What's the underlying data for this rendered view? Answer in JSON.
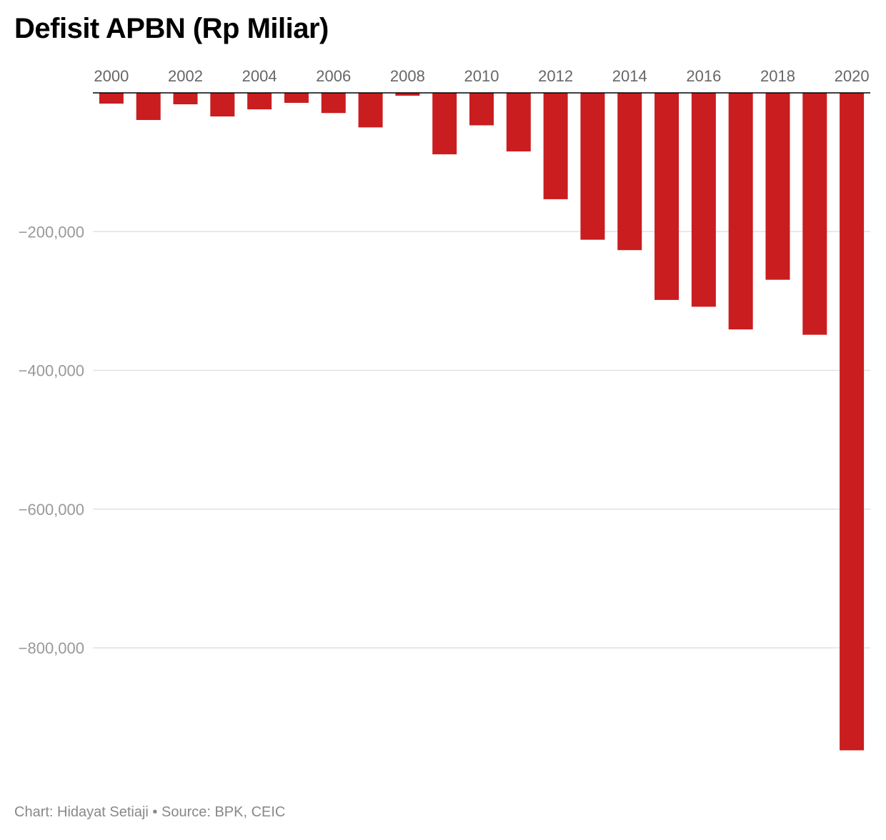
{
  "chart_data": {
    "type": "bar",
    "title": "Defisit APBN (Rp Miliar)",
    "xlabel": "",
    "ylabel": "",
    "categories": [
      "2000",
      "2001",
      "2002",
      "2003",
      "2004",
      "2005",
      "2006",
      "2007",
      "2008",
      "2009",
      "2010",
      "2011",
      "2012",
      "2013",
      "2014",
      "2015",
      "2016",
      "2017",
      "2018",
      "2019",
      "2020"
    ],
    "values": [
      -15500,
      -39100,
      -16500,
      -34000,
      -23800,
      -14400,
      -29100,
      -49800,
      -4100,
      -88600,
      -46800,
      -84400,
      -153300,
      -211700,
      -226700,
      -298500,
      -308300,
      -341000,
      -269400,
      -348700,
      -947700
    ],
    "x_tick_labels": [
      "2000",
      "2002",
      "2004",
      "2006",
      "2008",
      "2010",
      "2012",
      "2014",
      "2016",
      "2018",
      "2020"
    ],
    "y_ticks": [
      -200000,
      -400000,
      -600000,
      -800000
    ],
    "y_tick_labels": [
      "−200,000",
      "−400,000",
      "−600,000",
      "−800,000"
    ],
    "ylim": [
      -960000,
      0
    ],
    "grid": true,
    "x_axis_position": "top",
    "bar_color": "#c91d1f",
    "source": "Chart: Hidayat Setiaji • Source: BPK, CEIC"
  }
}
